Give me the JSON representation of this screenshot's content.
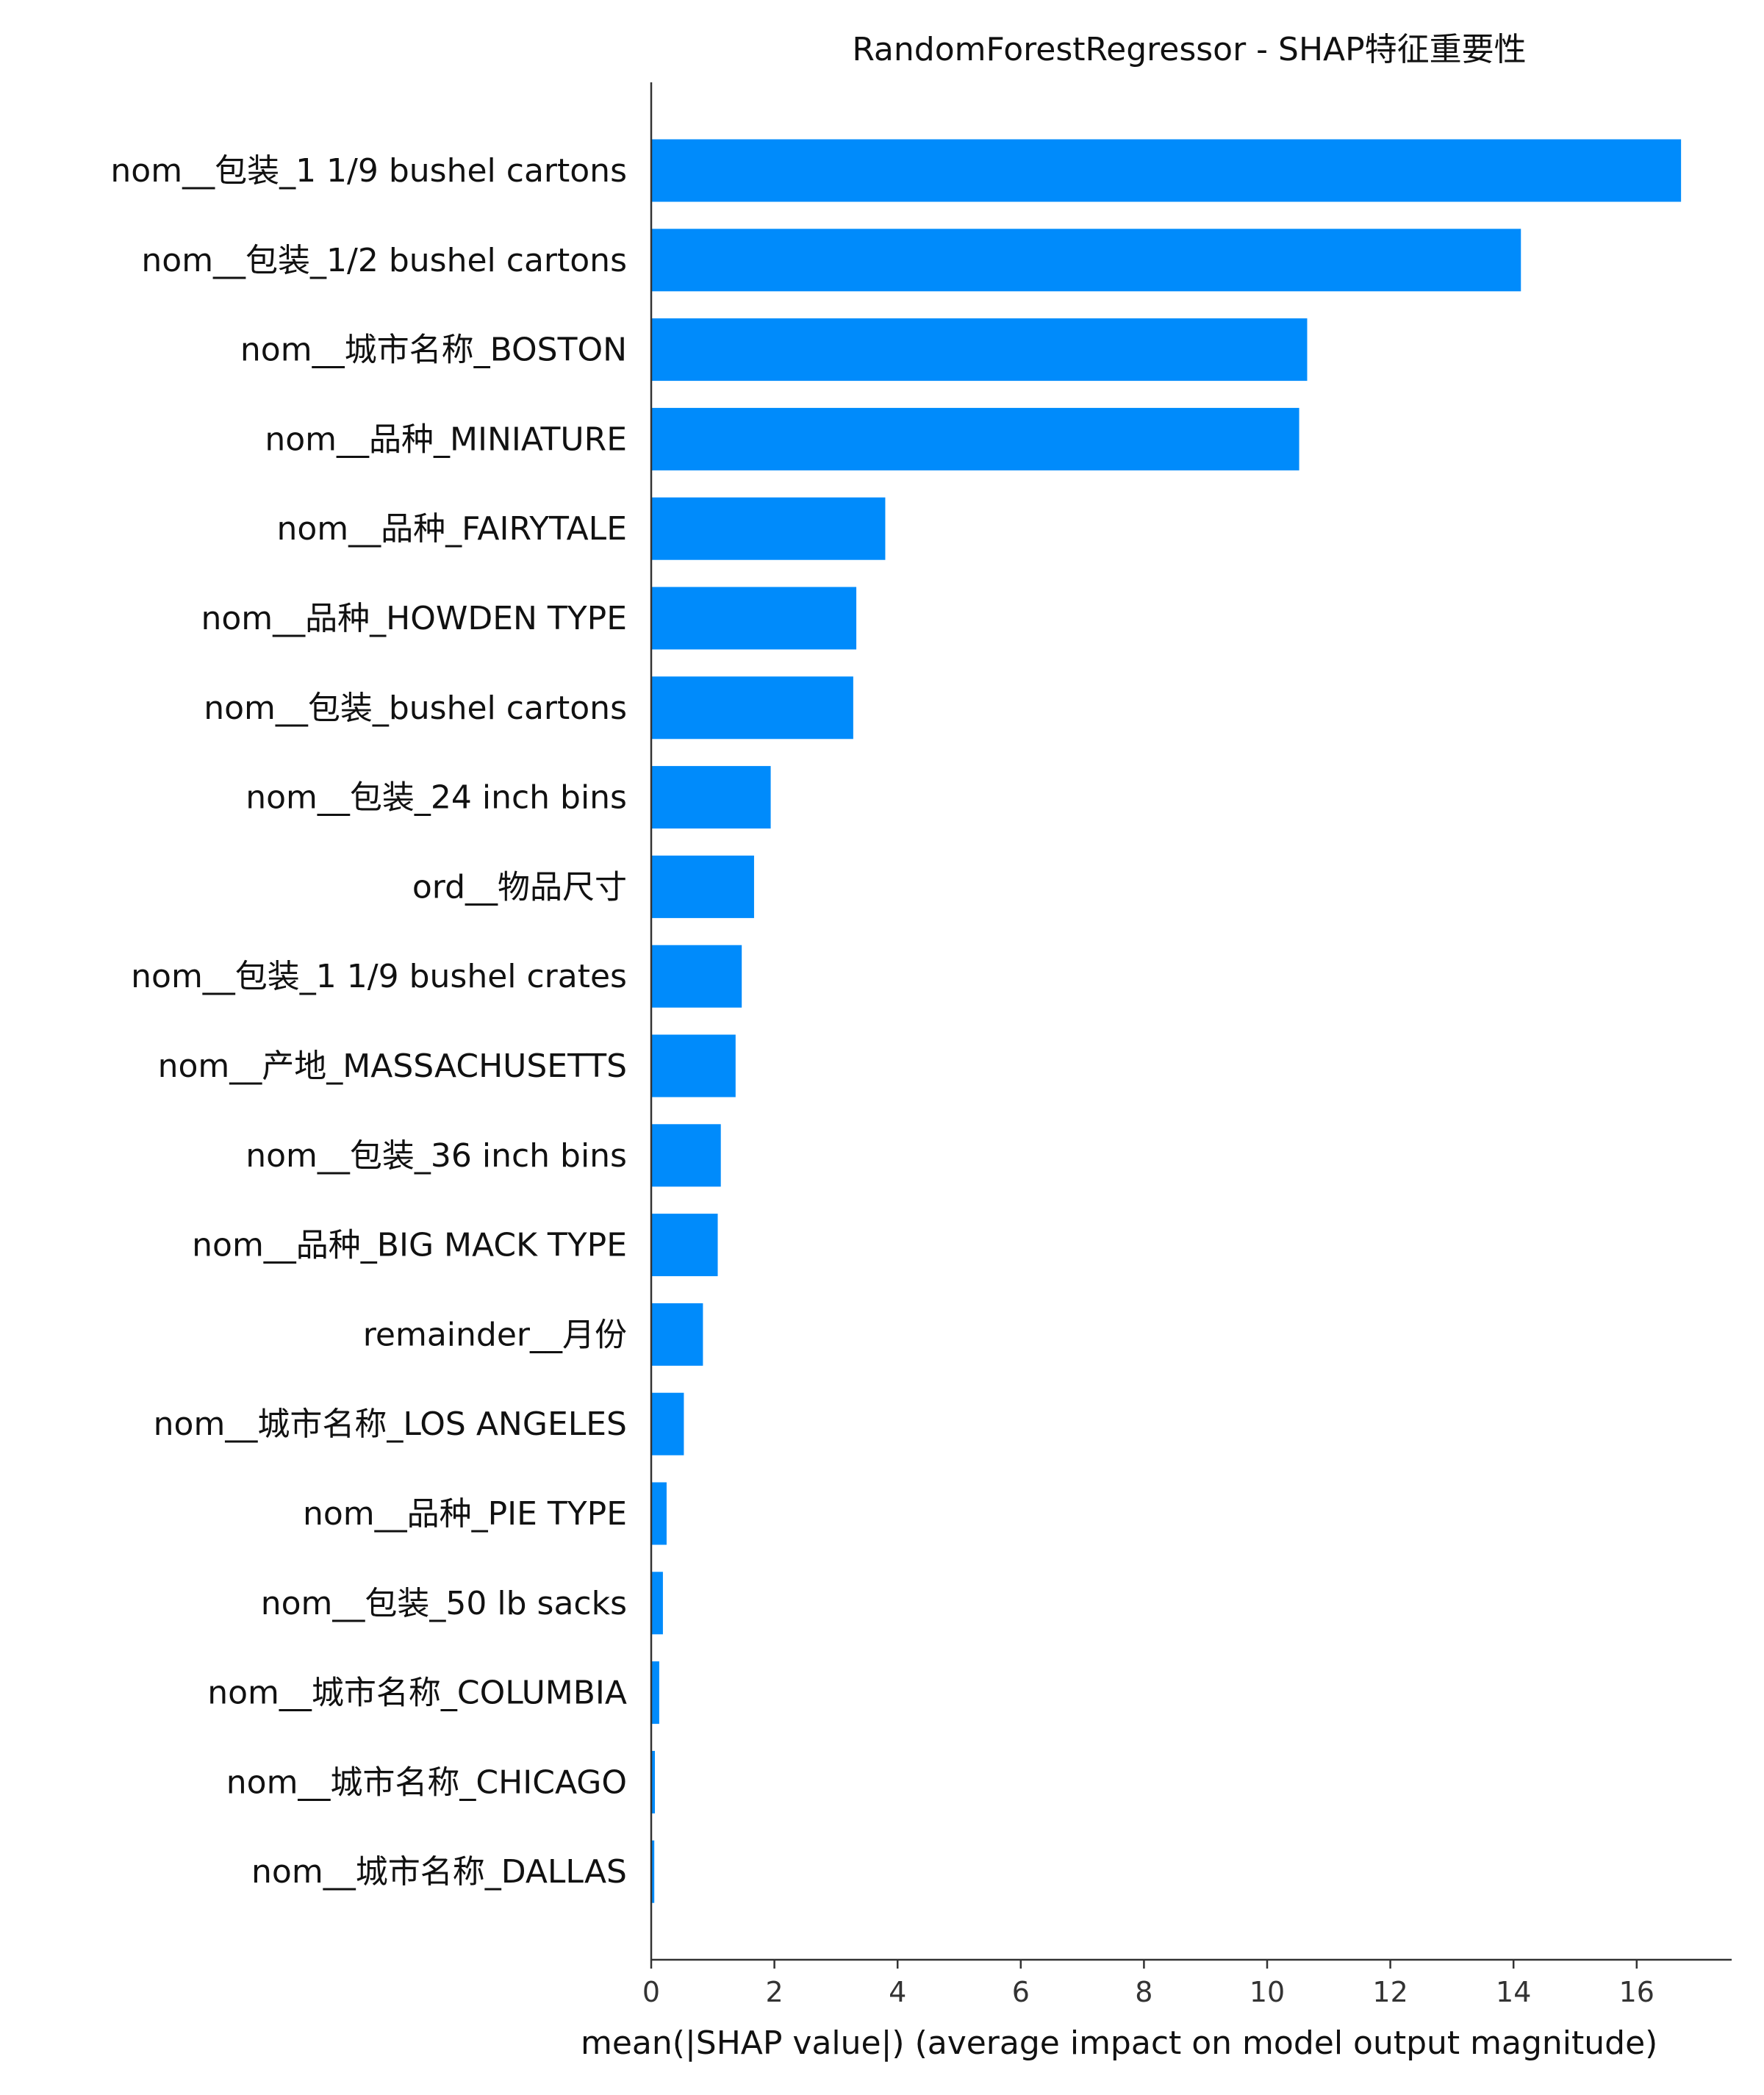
{
  "chart_data": {
    "type": "bar",
    "orientation": "horizontal",
    "title": "RandomForestRegressor - SHAP特征重要性",
    "xlabel": "mean(|SHAP value|) (average impact on model output magnitude)",
    "ylabel": "",
    "categories": [
      "nom__包装_1 1/9 bushel cartons",
      "nom__包装_1/2 bushel cartons",
      "nom__城市名称_BOSTON",
      "nom__品种_MINIATURE",
      "nom__品种_FAIRYTALE",
      "nom__品种_HOWDEN TYPE",
      "nom__包装_bushel cartons",
      "nom__包装_24 inch bins",
      "ord__物品尺寸",
      "nom__包装_1 1/9 bushel crates",
      "nom__产地_MASSACHUSETTS",
      "nom__包装_36 inch bins",
      "nom__品种_BIG MACK TYPE",
      "remainder__月份",
      "nom__城市名称_LOS ANGELES",
      "nom__品种_PIE TYPE",
      "nom__包装_50 lb sacks",
      "nom__城市名称_COLUMBIA",
      "nom__城市名称_CHICAGO",
      "nom__城市名称_DALLAS"
    ],
    "values": [
      16.72,
      14.12,
      10.65,
      10.52,
      3.8,
      3.33,
      3.28,
      1.94,
      1.67,
      1.47,
      1.37,
      1.13,
      1.08,
      0.84,
      0.53,
      0.25,
      0.19,
      0.13,
      0.06,
      0.05
    ],
    "xlim": [
      0,
      17.6
    ],
    "xticks": [
      0,
      2,
      4,
      6,
      8,
      10,
      12,
      14,
      16
    ],
    "grid": false,
    "legend": "none",
    "bar_color": "#008bfb",
    "axis_color": "#333333"
  }
}
